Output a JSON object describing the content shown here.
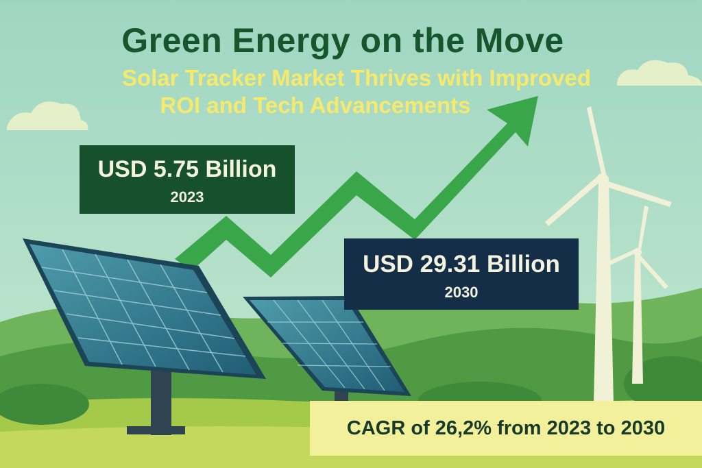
{
  "title": "Green Energy on the Move",
  "subtitle_line1": "Solar Tracker Market Thrives with Improved",
  "subtitle_line2": "ROI and Tech Advancements",
  "stat_2023": {
    "amount": "USD 5.75 Billion",
    "year": "2023"
  },
  "stat_2030": {
    "amount": "USD 29.31 Billion",
    "year": "2030"
  },
  "cagr": "CAGR of 26,2% from 2023 to 2030",
  "icons": [
    "trend-arrow-icon",
    "solar-panel-icon",
    "wind-turbine-icon",
    "cloud-icon"
  ],
  "colors": {
    "sky": "#a9dcc6",
    "title": "#17562c",
    "subtitle": "#f6ea6e",
    "arrow": "#3aa64a",
    "box_2023": "#17502d",
    "box_2030": "#142e48",
    "cagr_bg": "#f2f09a"
  }
}
